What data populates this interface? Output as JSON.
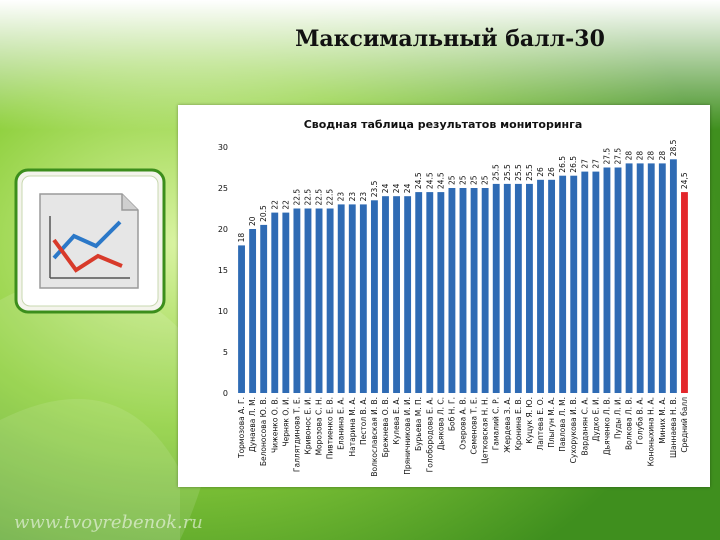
{
  "page": {
    "title": "Максимальный балл-30",
    "watermark": "www.tvoyrebenok.ru"
  },
  "icons": {
    "decor": "chart-document-icon"
  },
  "colors": {
    "bar": "#2f6bb4",
    "highlight_bar": "#e3262b",
    "background_green": "#7cc43a"
  },
  "chart_data": {
    "type": "bar",
    "title": "Сводная таблица результатов мониторинга",
    "ylim": [
      0,
      30
    ],
    "yticks": [
      0,
      5,
      10,
      15,
      20,
      25,
      30
    ],
    "grid": false,
    "categories": [
      "Тормозова А. Г.",
      "Дунаева Л. М.",
      "Белоносова Ю. В.",
      "Чиженко О. В.",
      "Черняк О. И.",
      "Галлятдинова Т. Е.",
      "Кривонос Е. И.",
      "Морозова С. Н.",
      "Пивтиенко Е. В.",
      "Еланина Е. А.",
      "Натарина М. А.",
      "Пестол В. А.",
      "Волкославская И. В.",
      "Брежнева О. В.",
      "Кулева Е. А.",
      "Пряничникова И. И.",
      "Бурьева М. П.",
      "Голобородова Е. А.",
      "Дьякова Л. С.",
      "Боб Н. Г.",
      "Озерова А. В.",
      "Семенова Т. Е.",
      "Цетковская Н. Н.",
      "Гамалий С. Р.",
      "Жердева З. А.",
      "Кронина Е. В.",
      "Куцук Я. Ю.",
      "Лаптева Е. О.",
      "Плыгун М. А.",
      "Павлова Л. М.",
      "Сухорукова И. В.",
      "Варданян С. А.",
      "Дудко Е. И.",
      "Дьяченко Л. В.",
      "Пуды Л. И.",
      "Волкова Л. В.",
      "Голуба В. А.",
      "Кононыхина Н. А.",
      "Миних М. А.",
      "Шаннаева Н. В.",
      "Средний балл"
    ],
    "values": [
      18,
      20,
      20.5,
      22,
      22,
      22.5,
      22.5,
      22.5,
      22.5,
      23,
      23,
      23,
      23.5,
      24,
      24,
      24,
      24.5,
      24.5,
      24.5,
      25,
      25,
      25,
      25,
      25.5,
      25.5,
      25.5,
      25.5,
      26,
      26,
      26.5,
      26.5,
      27,
      27,
      27.5,
      27.5,
      28,
      28,
      28,
      28,
      28.5,
      24.5
    ],
    "value_labels": [
      "18",
      "20",
      "20.5",
      "22",
      "22",
      "22.5",
      "22.5",
      "22.5",
      "22.5",
      "23",
      "23",
      "23",
      "23.5",
      "24",
      "24",
      "24",
      "24.5",
      "24.5",
      "24.5",
      "25",
      "25",
      "25",
      "25",
      "25.5",
      "25.5",
      "25.5",
      "25.5",
      "26",
      "26",
      "26.5",
      "26.5",
      "27",
      "27",
      "27.5",
      "27.5",
      "28",
      "28",
      "28",
      "28",
      "28.5",
      "24,5"
    ],
    "highlight_index": 40
  }
}
